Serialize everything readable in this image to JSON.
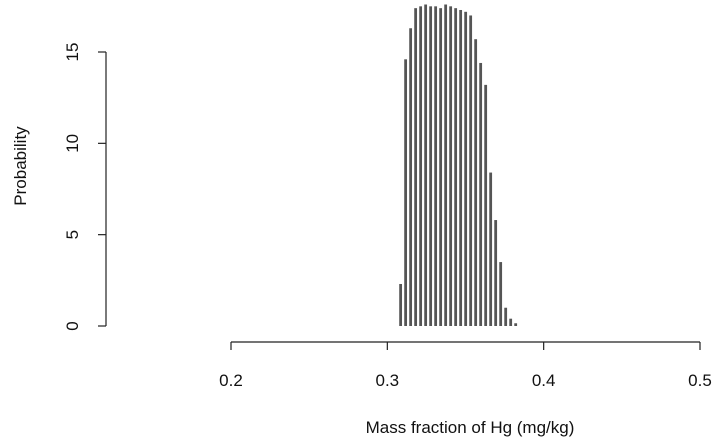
{
  "chart_data": {
    "type": "bar",
    "title": "",
    "xlabel": "Mass fraction of Hg (mg/kg)",
    "ylabel": "Probability",
    "xlim": [
      0.2,
      0.5
    ],
    "ylim": [
      0,
      17.6
    ],
    "xticks": [
      "0.2",
      "0.3",
      "0.4",
      "0.5"
    ],
    "yticks": [
      "0",
      "5",
      "10",
      "15"
    ],
    "grid": false,
    "bar_color": "#555555",
    "bars": [
      {
        "x": 0.3085,
        "y": 2.3
      },
      {
        "x": 0.3117,
        "y": 14.6
      },
      {
        "x": 0.3149,
        "y": 16.3
      },
      {
        "x": 0.3181,
        "y": 17.4
      },
      {
        "x": 0.3213,
        "y": 17.5
      },
      {
        "x": 0.3245,
        "y": 17.6
      },
      {
        "x": 0.3277,
        "y": 17.5
      },
      {
        "x": 0.3309,
        "y": 17.5
      },
      {
        "x": 0.3341,
        "y": 17.4
      },
      {
        "x": 0.3373,
        "y": 17.6
      },
      {
        "x": 0.3405,
        "y": 17.5
      },
      {
        "x": 0.3437,
        "y": 17.4
      },
      {
        "x": 0.3469,
        "y": 17.3
      },
      {
        "x": 0.3501,
        "y": 17.2
      },
      {
        "x": 0.3533,
        "y": 17.0
      },
      {
        "x": 0.3565,
        "y": 15.7
      },
      {
        "x": 0.3597,
        "y": 14.4
      },
      {
        "x": 0.3629,
        "y": 13.2
      },
      {
        "x": 0.3661,
        "y": 8.4
      },
      {
        "x": 0.3693,
        "y": 5.8
      },
      {
        "x": 0.3725,
        "y": 3.5
      },
      {
        "x": 0.3757,
        "y": 1.0
      },
      {
        "x": 0.3789,
        "y": 0.4
      },
      {
        "x": 0.3821,
        "y": 0.15
      }
    ]
  }
}
